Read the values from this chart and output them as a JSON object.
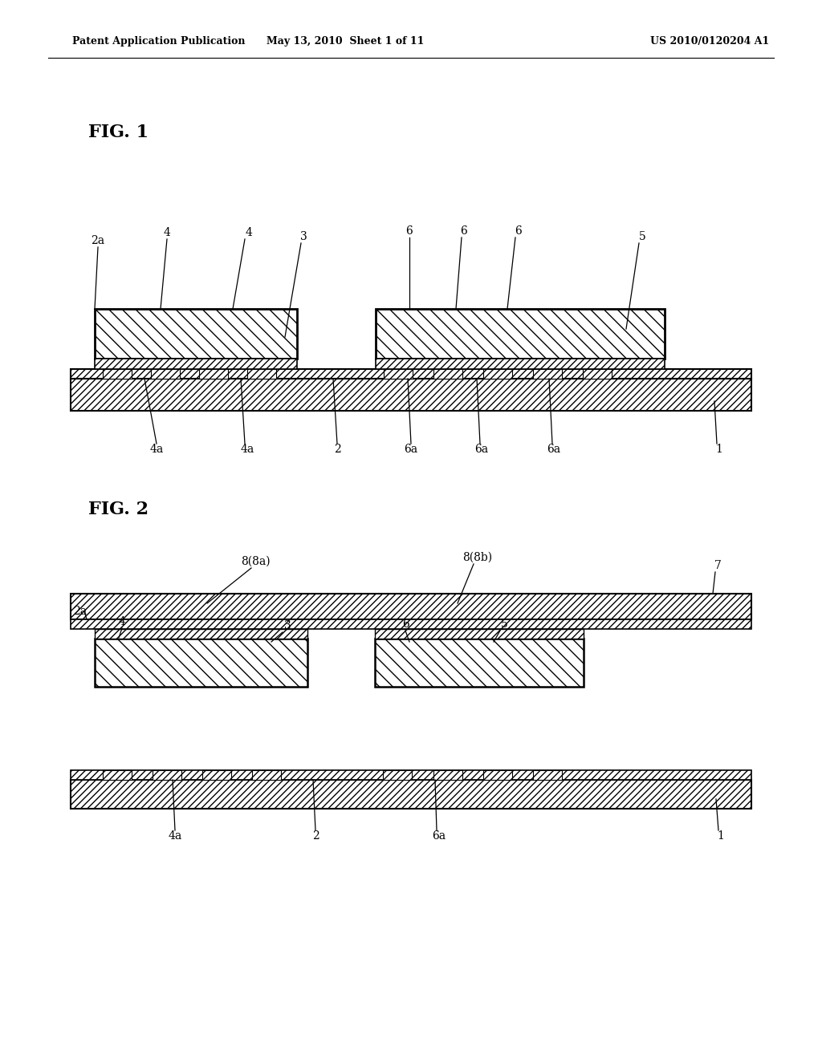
{
  "header_left": "Patent Application Publication",
  "header_mid": "May 13, 2010  Sheet 1 of 11",
  "header_right": "US 2010/0120204 A1",
  "fig1_label": "FIG. 1",
  "fig2_label": "FIG. 2",
  "bg_color": "#ffffff"
}
